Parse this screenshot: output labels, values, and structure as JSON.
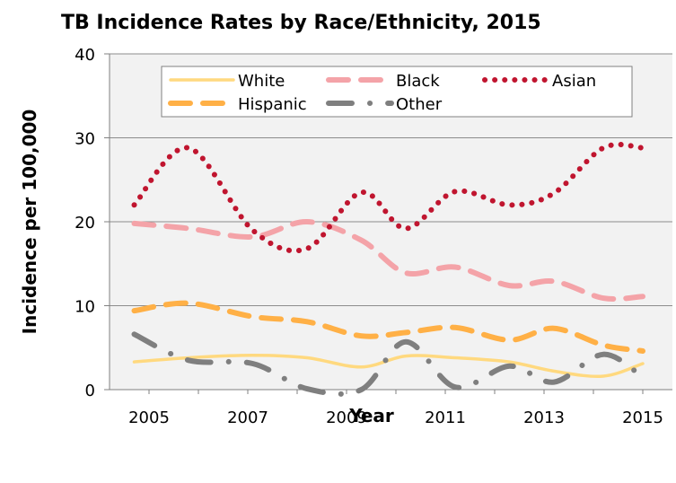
{
  "chart_data": {
    "type": "line",
    "title": "TB Incidence Rates by Race/Ethnicity, 2015",
    "xlabel": "Year",
    "ylabel": "Incidence per 100,000",
    "xlim": [
      2004.2,
      2015.6
    ],
    "ylim": [
      0,
      40
    ],
    "x_ticks": [
      2005,
      2007,
      2009,
      2011,
      2013,
      2015
    ],
    "y_ticks": [
      0,
      10,
      20,
      30,
      40
    ],
    "grid": true,
    "legend_position": "top",
    "x": [
      2004.7,
      2005.8,
      2007.1,
      2008.2,
      2009.3,
      2010.2,
      2011.2,
      2012.3,
      2013.2,
      2014.2,
      2015.0
    ],
    "series": [
      {
        "name": "White",
        "color": "#ffd97f",
        "style": "solid",
        "values": [
          3.3,
          3.8,
          4.1,
          3.8,
          2.7,
          4.0,
          3.8,
          3.3,
          2.2,
          1.6,
          3.1
        ]
      },
      {
        "name": "Black",
        "color": "#f4a3a8",
        "style": "dashed",
        "values": [
          19.8,
          19.2,
          18.2,
          20.0,
          17.8,
          13.9,
          14.6,
          12.4,
          12.9,
          10.9,
          11.1
        ]
      },
      {
        "name": "Asian",
        "color": "#c0152f",
        "style": "dotted",
        "values": [
          22.0,
          28.8,
          19.0,
          16.8,
          23.5,
          19.2,
          23.6,
          22.0,
          23.4,
          28.8,
          28.8
        ]
      },
      {
        "name": "Hispanic",
        "color": "#ffb046",
        "style": "dashed",
        "values": [
          9.4,
          10.3,
          8.7,
          8.1,
          6.4,
          6.8,
          7.4,
          5.9,
          7.3,
          5.3,
          4.6
        ]
      },
      {
        "name": "Other",
        "color": "#7f7f7f",
        "style": "dash-dot",
        "values": [
          6.6,
          3.5,
          3.1,
          0.1,
          0.0,
          5.7,
          0.3,
          2.8,
          0.9,
          4.2,
          1.5
        ]
      }
    ]
  }
}
